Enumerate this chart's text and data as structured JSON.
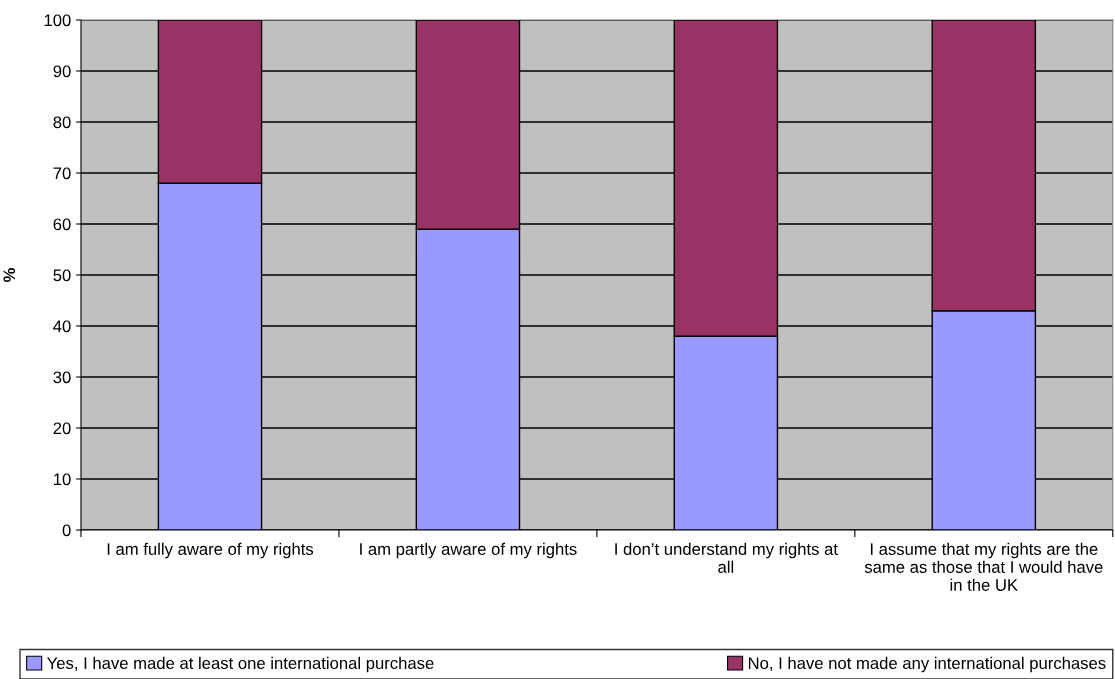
{
  "chart_data": {
    "type": "bar",
    "stacked": true,
    "ylabel": "%",
    "categories": [
      "I am fully aware of my rights",
      "I am partly aware of my rights",
      "I don’t understand my rights at all",
      "I assume that my rights are the same as those that I would have in the UK"
    ],
    "series": [
      {
        "name": "Yes, I have made at least one international purchase",
        "color": "#9999ff",
        "values": [
          68,
          59,
          38,
          43
        ]
      },
      {
        "name": "No, I have not made any international purchases",
        "color": "#993366",
        "values": [
          32,
          41,
          62,
          57
        ]
      }
    ],
    "ylim": [
      0,
      100
    ],
    "yticks": [
      0,
      10,
      20,
      30,
      40,
      50,
      60,
      70,
      80,
      90,
      100
    ],
    "grid": "y",
    "legend": "bottom"
  }
}
